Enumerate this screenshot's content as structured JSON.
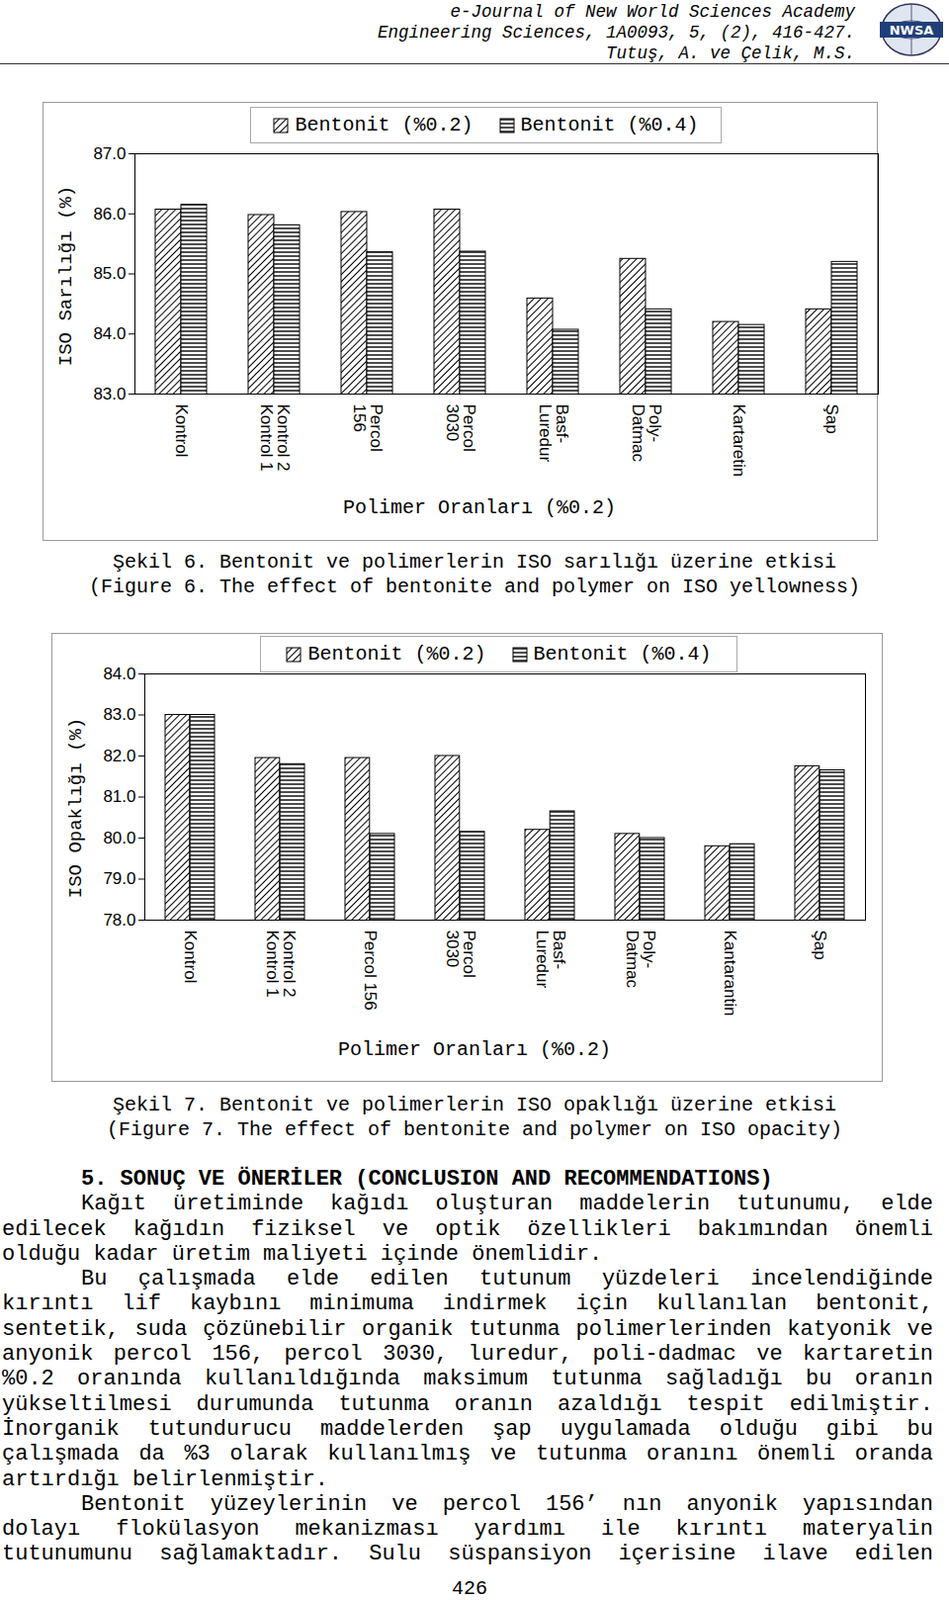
{
  "header": {
    "lines": [
      "e-Journal of New World Sciences Academy",
      "Engineering Sciences, 1A0093, 5, (2), 416-427.",
      "Tutuş, A. ve Çelik, M.S."
    ],
    "logo": "NWSA"
  },
  "chart_data": [
    {
      "type": "bar",
      "y_label": "ISO Sarılığı (%)",
      "x_label": "Polimer Oranları (%0.2)",
      "categories": [
        "Kontrol",
        "Kontrol 2\nKontrol 1",
        "Percol\n156",
        "Percol\n3030",
        "Basf-\nLuredur",
        "Poly-\nDatmac",
        "Kartaretin",
        "Şap"
      ],
      "series": [
        {
          "name": "Bentonit (%0.2)",
          "color": "#000000",
          "values": [
            86.07,
            85.98,
            86.03,
            86.07,
            84.59,
            85.25,
            84.2,
            84.41
          ]
        },
        {
          "name": "Bentonit (%0.4)",
          "color": "#000000",
          "values": [
            86.15,
            85.81,
            85.36,
            85.37,
            84.07,
            84.41,
            84.15,
            85.2
          ]
        }
      ],
      "ylim": [
        83,
        87
      ],
      "yticks": [
        83,
        84,
        85,
        86,
        87
      ],
      "grid": false,
      "legend": "top"
    },
    {
      "type": "bar",
      "y_label": "ISO Opaklığı (%)",
      "x_label": "Polimer Oranları (%0.2)",
      "categories": [
        "Kontrol",
        "Kontrol 2\nKontrol 1",
        "Percol 156",
        "Percol\n3030",
        "Basf-\nLuredur",
        "Poly-\nDatmac",
        "Kantarantin",
        "Şap"
      ],
      "series": [
        {
          "name": "Bentonit (%0.2)",
          "color": "#000000",
          "values": [
            83.0,
            81.95,
            81.95,
            82.0,
            80.2,
            80.1,
            79.8,
            81.75
          ]
        },
        {
          "name": "Bentonit (%0.4)",
          "color": "#000000",
          "values": [
            83.0,
            81.8,
            80.1,
            80.15,
            80.65,
            80.0,
            79.85,
            81.65
          ]
        }
      ],
      "ylim": [
        78,
        84
      ],
      "yticks": [
        78,
        79,
        80,
        81,
        82,
        83,
        84
      ],
      "grid": false,
      "legend": "top"
    }
  ],
  "captions": [
    [
      "Şekil 6. Bentonit ve polimerlerin ISO sarılığı üzerine etkisi",
      "(Figure 6. The effect of bentonite and polymer on ISO yellowness)"
    ],
    [
      "Şekil 7. Bentonit ve polimerlerin ISO opaklığı üzerine etkisi",
      "(Figure 7. The effect of bentonite and polymer on ISO opacity)"
    ]
  ],
  "section": {
    "heading": "5. SONUÇ VE ÖNERİLER (CONCLUSION AND RECOMMENDATIONS)",
    "paragraphs": [
      [
        "Kağıt üretiminde kağıdı oluşturan maddelerin tutunumu, elde",
        "edilecek kağıdın fiziksel ve optik özellikleri bakımından önemli",
        "olduğu kadar üretim maliyeti içinde önemlidir."
      ],
      [
        "Bu çalışmada elde edilen tutunum yüzdeleri incelendiğinde",
        "kırıntı lif kaybını minimuma indirmek için kullanılan bentonit,",
        "sentetik, suda çözünebilir organik tutunma polimerlerinden katyonik ve",
        "anyonik percol 156, percol 3030, luredur, poli-dadmac ve kartaretin",
        "%0.2 oranında kullanıldığında maksimum tutunma sağladığı bu oranın",
        "yükseltilmesi durumunda tutunma oranın azaldığı tespit edilmiştir.",
        "İnorganik tutundurucu maddelerden şap uygulamada olduğu gibi bu",
        "çalışmada da %3 olarak kullanılmış ve tutunma oranını önemli oranda",
        "artırdığı belirlenmiştir."
      ],
      [
        "Bentonit yüzeylerinin ve percol 156’ nın anyonik yapısından",
        "dolayı flokülasyon mekanizması yardımı ile kırıntı materyalin",
        "tutunumunu sağlamaktadır. Sulu süspansiyon içerisine ilave edilen"
      ]
    ]
  },
  "page_number": "426"
}
